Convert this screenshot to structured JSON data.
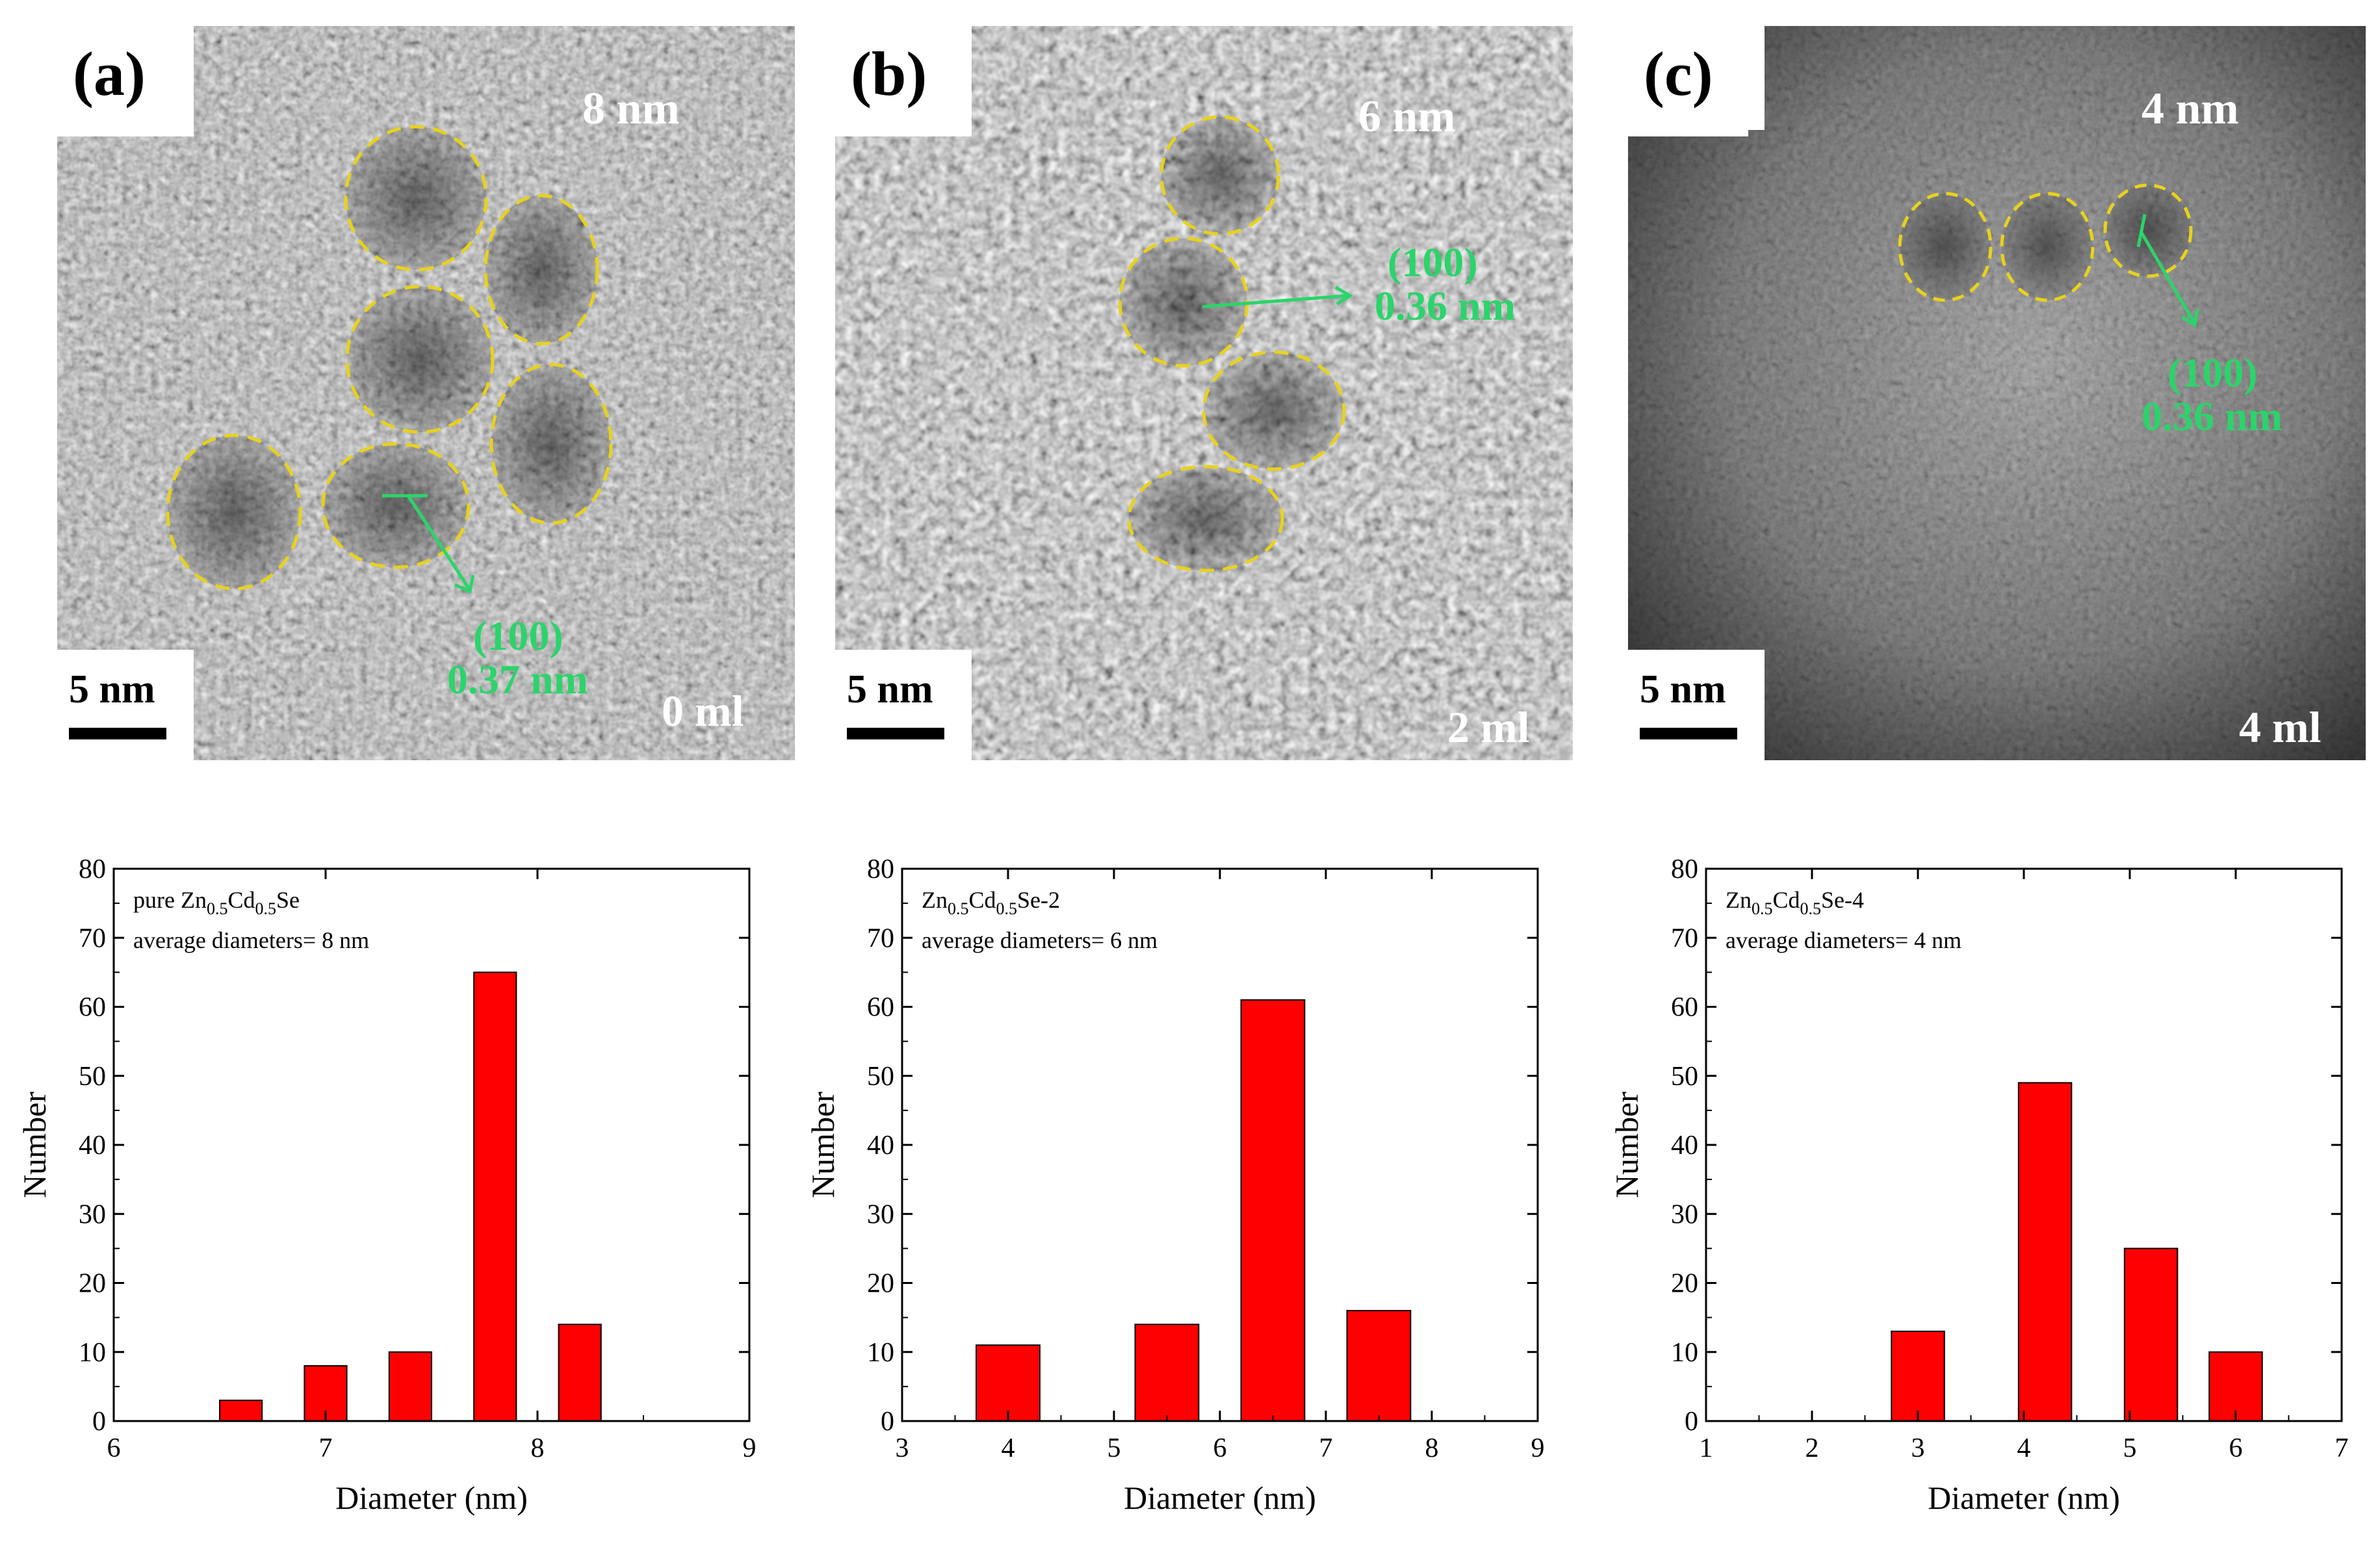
{
  "tem_panels": [
    {
      "label": "(a)",
      "size": "8 nm",
      "scale": "5 nm",
      "volume": "0 ml",
      "plane": "(100)",
      "spacing": "0.37 nm"
    },
    {
      "label": "(b)",
      "size": "6 nm",
      "scale": "5 nm",
      "volume": "2 ml",
      "plane": "(100)",
      "spacing": "0.36 nm"
    },
    {
      "label": "(c)",
      "size": "4 nm",
      "scale": "5 nm",
      "volume": "4 ml",
      "plane": "(100)",
      "spacing": "0.36 nm"
    }
  ],
  "colors": {
    "bar": "#ff0000",
    "particle_outline": "#e8d21c",
    "lattice_annotation": "#2bd46a"
  },
  "chart_data": [
    {
      "type": "bar",
      "sample_name": "pure Zn0.5Cd0.5Se",
      "legend_lines": [
        [
          {
            "t": "pure Zn"
          },
          {
            "t": "0.5",
            "sub": true
          },
          {
            "t": "Cd"
          },
          {
            "t": "0.5",
            "sub": true
          },
          {
            "t": "Se"
          }
        ],
        [
          {
            "t": "average diameters= 8 nm"
          }
        ]
      ],
      "xlabel": "Diameter (nm)",
      "ylabel": "Number",
      "xlim": [
        6,
        9
      ],
      "ylim": [
        0,
        80
      ],
      "xticks": [
        "6",
        "7",
        "8",
        "9"
      ],
      "yticks": [
        "0",
        "10",
        "20",
        "30",
        "40",
        "50",
        "60",
        "70",
        "80"
      ],
      "bars": [
        {
          "x": 6.6,
          "width": 0.2,
          "value": 3
        },
        {
          "x": 7.0,
          "width": 0.2,
          "value": 8
        },
        {
          "x": 7.4,
          "width": 0.2,
          "value": 10
        },
        {
          "x": 7.8,
          "width": 0.2,
          "value": 65
        },
        {
          "x": 8.2,
          "width": 0.2,
          "value": 14
        }
      ]
    },
    {
      "type": "bar",
      "sample_name": "Zn0.5Cd0.5Se-2",
      "legend_lines": [
        [
          {
            "t": "Zn"
          },
          {
            "t": "0.5",
            "sub": true
          },
          {
            "t": "Cd"
          },
          {
            "t": "0.5",
            "sub": true
          },
          {
            "t": "Se-2"
          }
        ],
        [
          {
            "t": "average diameters= 6 nm"
          }
        ]
      ],
      "xlabel": "Diameter (nm)",
      "ylabel": "Number",
      "xlim": [
        3,
        9
      ],
      "ylim": [
        0,
        80
      ],
      "xticks": [
        "3",
        "4",
        "5",
        "6",
        "7",
        "8",
        "9"
      ],
      "yticks": [
        "0",
        "10",
        "20",
        "30",
        "40",
        "50",
        "60",
        "70",
        "80"
      ],
      "bars": [
        {
          "x": 4.0,
          "width": 0.6,
          "value": 11
        },
        {
          "x": 5.5,
          "width": 0.6,
          "value": 14
        },
        {
          "x": 6.5,
          "width": 0.6,
          "value": 61
        },
        {
          "x": 7.5,
          "width": 0.6,
          "value": 16
        }
      ]
    },
    {
      "type": "bar",
      "sample_name": "Zn0.5Cd0.5Se-4",
      "legend_lines": [
        [
          {
            "t": "Zn"
          },
          {
            "t": "0.5",
            "sub": true
          },
          {
            "t": "Cd"
          },
          {
            "t": "0.5",
            "sub": true
          },
          {
            "t": "Se-4"
          }
        ],
        [
          {
            "t": "average diameters= 4 nm"
          }
        ]
      ],
      "xlabel": "Diameter (nm)",
      "ylabel": "Number",
      "xlim": [
        1,
        7
      ],
      "ylim": [
        0,
        80
      ],
      "xticks": [
        "1",
        "2",
        "3",
        "4",
        "5",
        "6",
        "7"
      ],
      "yticks": [
        "0",
        "10",
        "20",
        "30",
        "40",
        "50",
        "60",
        "70",
        "80"
      ],
      "bars": [
        {
          "x": 3.0,
          "width": 0.5,
          "value": 13
        },
        {
          "x": 4.2,
          "width": 0.5,
          "value": 49
        },
        {
          "x": 5.2,
          "width": 0.5,
          "value": 25
        },
        {
          "x": 6.0,
          "width": 0.5,
          "value": 10
        }
      ]
    }
  ]
}
